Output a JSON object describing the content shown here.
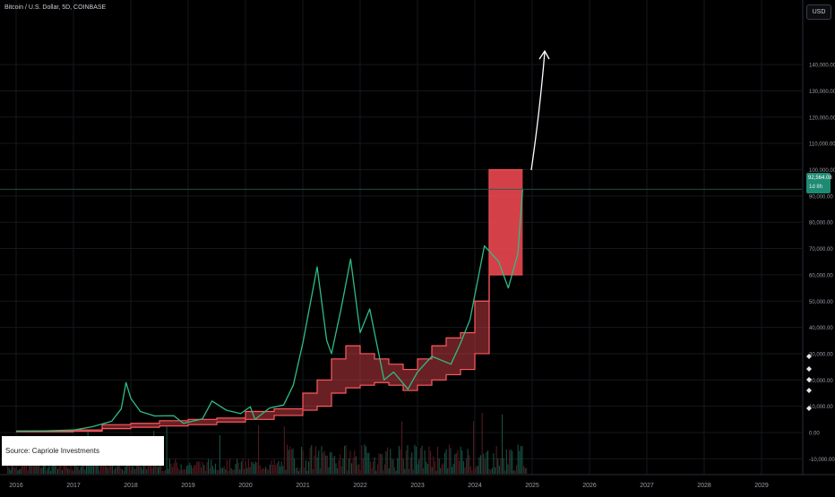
{
  "header": {
    "title": "Bitcoin / U.S. Dollar, 5D, COINBASE"
  },
  "toolbar": {
    "currency_label": "USD"
  },
  "source_label": "Source: Capriole Investments",
  "price_tag": {
    "price": "92,564.08",
    "countdown": "1d 8h"
  },
  "colors": {
    "background": "#000000",
    "band_fill": "#e8474f",
    "band_outline": "#ff5a5f",
    "price_line": "#2ebd85",
    "volume_up": "#1b5e4f",
    "volume_down": "#5e1f25",
    "arrow": "#ffffff",
    "grid": "#15171c"
  },
  "chart_data": {
    "type": "line",
    "title": "",
    "xlabel": "",
    "ylabel": "",
    "x_ticks": [
      "2016",
      "2017",
      "2018",
      "2019",
      "2020",
      "2021",
      "2022",
      "2023",
      "2024",
      "2025",
      "2026",
      "2027",
      "2028",
      "2029"
    ],
    "y_ticks": [
      "-10,000.00",
      "0.00",
      "10,000.00",
      "20,000.00",
      "30,000.00",
      "40,000.00",
      "50,000.00",
      "60,000.00",
      "70,000.00",
      "80,000.00",
      "90,000.00",
      "100,000.00",
      "110,000.00",
      "120,000.00",
      "130,000.00",
      "140,000.00"
    ],
    "ylim": [
      -10000,
      145000
    ],
    "current_price": 92564.08,
    "series": [
      {
        "values": [
          {
            "x": "2016-01",
            "y": 430
          },
          {
            "x": "2016-07",
            "y": 650
          },
          {
            "x": "2017-01",
            "y": 950
          },
          {
            "x": "2017-05",
            "y": 2200
          },
          {
            "x": "2017-09",
            "y": 4300
          },
          {
            "x": "2017-11",
            "y": 9000
          },
          {
            "x": "2017-12",
            "y": 19000
          },
          {
            "x": "2018-01",
            "y": 13000
          },
          {
            "x": "2018-03",
            "y": 8000
          },
          {
            "x": "2018-06",
            "y": 6300
          },
          {
            "x": "2018-10",
            "y": 6400
          },
          {
            "x": "2018-12",
            "y": 3500
          },
          {
            "x": "2019-04",
            "y": 5200
          },
          {
            "x": "2019-06",
            "y": 12000
          },
          {
            "x": "2019-09",
            "y": 8500
          },
          {
            "x": "2019-12",
            "y": 7200
          },
          {
            "x": "2020-02",
            "y": 9800
          },
          {
            "x": "2020-03",
            "y": 5000
          },
          {
            "x": "2020-06",
            "y": 9300
          },
          {
            "x": "2020-09",
            "y": 10500
          },
          {
            "x": "2020-11",
            "y": 18000
          },
          {
            "x": "2021-01",
            "y": 34000
          },
          {
            "x": "2021-04",
            "y": 63000
          },
          {
            "x": "2021-06",
            "y": 35000
          },
          {
            "x": "2021-07",
            "y": 30000
          },
          {
            "x": "2021-09",
            "y": 47000
          },
          {
            "x": "2021-11",
            "y": 66000
          },
          {
            "x": "2022-01",
            "y": 38000
          },
          {
            "x": "2022-03",
            "y": 47000
          },
          {
            "x": "2022-06",
            "y": 20000
          },
          {
            "x": "2022-08",
            "y": 23000
          },
          {
            "x": "2022-11",
            "y": 16500
          },
          {
            "x": "2023-01",
            "y": 23000
          },
          {
            "x": "2023-04",
            "y": 29000
          },
          {
            "x": "2023-08",
            "y": 26000
          },
          {
            "x": "2023-10",
            "y": 34000
          },
          {
            "x": "2023-12",
            "y": 43000
          },
          {
            "x": "2024-03",
            "y": 71000
          },
          {
            "x": "2024-06",
            "y": 65000
          },
          {
            "x": "2024-08",
            "y": 55000
          },
          {
            "x": "2024-10",
            "y": 68000
          },
          {
            "x": "2024-11",
            "y": 92564
          }
        ]
      }
    ],
    "band": {
      "upper": [
        {
          "x": "2016-01",
          "y": 600
        },
        {
          "x": "2017-01",
          "y": 1000
        },
        {
          "x": "2017-07",
          "y": 3000
        },
        {
          "x": "2018-01",
          "y": 3500
        },
        {
          "x": "2018-07",
          "y": 4500
        },
        {
          "x": "2019-01",
          "y": 5000
        },
        {
          "x": "2019-07",
          "y": 5500
        },
        {
          "x": "2020-01",
          "y": 8000
        },
        {
          "x": "2020-07",
          "y": 9000
        },
        {
          "x": "2021-01",
          "y": 15000
        },
        {
          "x": "2021-04",
          "y": 20000
        },
        {
          "x": "2021-07",
          "y": 28000
        },
        {
          "x": "2021-10",
          "y": 33000
        },
        {
          "x": "2022-01",
          "y": 30000
        },
        {
          "x": "2022-04",
          "y": 28000
        },
        {
          "x": "2022-07",
          "y": 26000
        },
        {
          "x": "2022-10",
          "y": 24000
        },
        {
          "x": "2023-01",
          "y": 28000
        },
        {
          "x": "2023-04",
          "y": 33000
        },
        {
          "x": "2023-07",
          "y": 36000
        },
        {
          "x": "2023-10",
          "y": 38000
        },
        {
          "x": "2024-01",
          "y": 50000
        },
        {
          "x": "2024-04",
          "y": 100000
        },
        {
          "x": "2024-11",
          "y": 100000
        }
      ],
      "lower": [
        {
          "x": "2016-01",
          "y": 300
        },
        {
          "x": "2017-01",
          "y": 500
        },
        {
          "x": "2017-07",
          "y": 1500
        },
        {
          "x": "2018-01",
          "y": 2000
        },
        {
          "x": "2018-07",
          "y": 2500
        },
        {
          "x": "2019-01",
          "y": 3000
        },
        {
          "x": "2019-07",
          "y": 4000
        },
        {
          "x": "2020-01",
          "y": 5000
        },
        {
          "x": "2020-07",
          "y": 6500
        },
        {
          "x": "2021-01",
          "y": 8500
        },
        {
          "x": "2021-04",
          "y": 10000
        },
        {
          "x": "2021-07",
          "y": 15000
        },
        {
          "x": "2021-10",
          "y": 17000
        },
        {
          "x": "2022-01",
          "y": 18000
        },
        {
          "x": "2022-04",
          "y": 19000
        },
        {
          "x": "2022-07",
          "y": 18000
        },
        {
          "x": "2022-10",
          "y": 16000
        },
        {
          "x": "2023-01",
          "y": 18000
        },
        {
          "x": "2023-04",
          "y": 20000
        },
        {
          "x": "2023-07",
          "y": 22000
        },
        {
          "x": "2023-10",
          "y": 24000
        },
        {
          "x": "2024-01",
          "y": 30000
        },
        {
          "x": "2024-04",
          "y": 60000
        },
        {
          "x": "2024-11",
          "y": 60000
        }
      ]
    },
    "grid": true,
    "legend": "none"
  }
}
